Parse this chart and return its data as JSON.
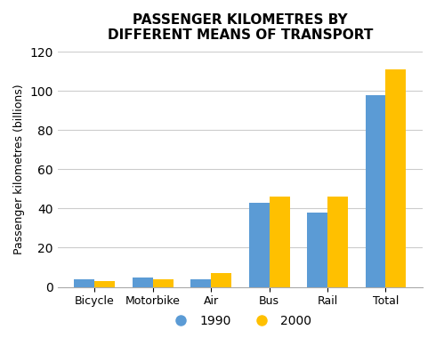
{
  "title": "PASSENGER KILOMETRES BY\nDIFFERENT MEANS OF TRANSPORT",
  "categories": [
    "Bicycle",
    "Motorbike",
    "Air",
    "Bus",
    "Rail",
    "Total"
  ],
  "values_1990": [
    4,
    5,
    4,
    43,
    38,
    98
  ],
  "values_2000": [
    3,
    4,
    7,
    46,
    46,
    111
  ],
  "color_1990": "#5b9bd5",
  "color_2000": "#ffc000",
  "ylabel": "Passenger kilometres (billions)",
  "ylim": [
    0,
    120
  ],
  "yticks": [
    0,
    20,
    40,
    60,
    80,
    100,
    120
  ],
  "legend_labels": [
    "1990",
    "2000"
  ],
  "bar_width": 0.35,
  "background_color": "#ffffff",
  "grid_color": "#cccccc"
}
